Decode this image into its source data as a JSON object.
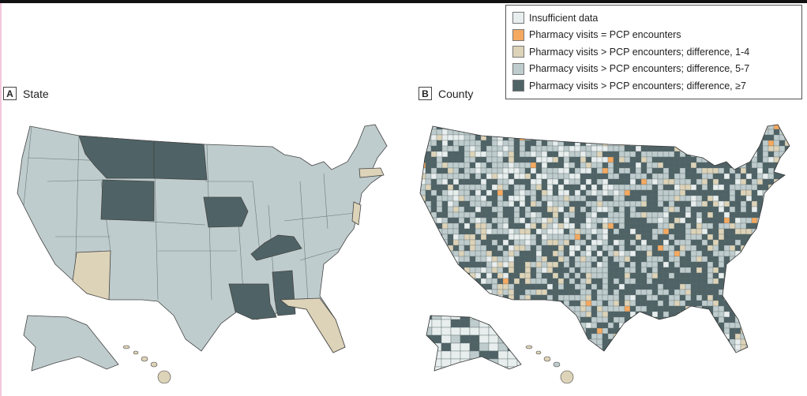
{
  "legend": {
    "items": [
      {
        "label": "Insufficient data",
        "color": "#e8eeee"
      },
      {
        "label": "Pharmacy visits = PCP encounters",
        "color": "#f5a960"
      },
      {
        "label": "Pharmacy visits > PCP encounters; difference, 1-4",
        "color": "#ddd3b8"
      },
      {
        "label": "Pharmacy visits > PCP encounters; difference, 5-7",
        "color": "#bfcccd"
      },
      {
        "label": "Pharmacy visits > PCP encounters; difference, ≥7",
        "color": "#4f6366"
      }
    ]
  },
  "panels": [
    {
      "letter": "A",
      "title": "State"
    },
    {
      "letter": "B",
      "title": "County"
    }
  ],
  "state_categories": {
    "default": 3,
    "Montana": 4,
    "North Dakota": 4,
    "Wyoming": 4,
    "Iowa": 4,
    "Kentucky": 4,
    "Mississippi": 4,
    "Louisiana": 4,
    "Arizona": 2,
    "Florida": 2,
    "New Jersey": 2,
    "Massachusetts": 2,
    "Hawaii": 2
  }
}
